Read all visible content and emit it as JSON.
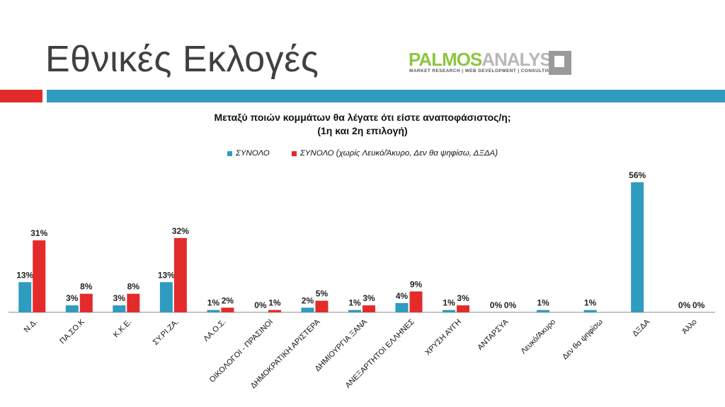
{
  "slide": {
    "title": "Εθνικές Εκλογές"
  },
  "logo": {
    "text_a": "PALMOS",
    "text_b": "ANALYSIS",
    "tagline": "MARKET RESEARCH | WEB DEVELOPMENT | CONSULTING"
  },
  "colors": {
    "series1": "#2f9bbf",
    "series2": "#e32b2b",
    "rule_red": "#e32b2b",
    "rule_blue": "#2f9bbf"
  },
  "chart_data": {
    "type": "bar",
    "title": "Μεταξύ ποιών κομμάτων θα λέγατε ότι είστε αναποφάσιστος/η;",
    "subtitle": "(1η και 2η επιλογή)",
    "categories": [
      "Ν.Δ.",
      "ΠΑ.ΣΟ.Κ",
      "Κ.Κ.Ε.",
      "ΣΥ.ΡΙ.ΖΑ.",
      "ΛΑ.Ο.Σ.",
      "ΟΙΚΟΛΟΓΟΙ - ΠΡΑΣΙΝΟΙ",
      "ΔΗΜΟΚΡΑΤΙΚΗ ΑΡΙΣΤΕΡΑ",
      "ΔΗΜΙΟΥΡΓΙΑ ΞΑΝΑ",
      "ΑΝΕΞΑΡΤΗΤΟΙ ΕΛΛΗΝΕΣ",
      "ΧΡΥΣΗ ΑΥΓΗ",
      "ΑΝΤΑΡΣΥΑ",
      "Λευκό/Άκυρο",
      "Δεν θα ψηφίσω",
      "ΔΞΔΑ",
      "Άλλο"
    ],
    "series": [
      {
        "name": "ΣΥΝΟΛΟ",
        "values": [
          13,
          3,
          3,
          13,
          1,
          0,
          2,
          1,
          4,
          1,
          0,
          1,
          1,
          56,
          0
        ],
        "labels": [
          "13%",
          "3%",
          "3%",
          "13%",
          "1%",
          "0%",
          "2%",
          "1%",
          "4%",
          "1%",
          "0%",
          "1%",
          "1%",
          "56%",
          "0%"
        ]
      },
      {
        "name": "ΣΥΝΟΛΟ (χωρίς Λευκό/Άκυρο, Δεν θα ψηφίσω, ΔΞΔΑ)",
        "values": [
          31,
          8,
          8,
          32,
          2,
          1,
          5,
          3,
          9,
          3,
          0,
          null,
          null,
          null,
          0
        ],
        "labels": [
          "31%",
          "8%",
          "8%",
          "32%",
          "2%",
          "1%",
          "5%",
          "3%",
          "9%",
          "3%",
          "0%",
          null,
          null,
          null,
          "0%"
        ]
      }
    ],
    "ylim": [
      0,
      60
    ],
    "legend_position": "top",
    "grid": false
  }
}
